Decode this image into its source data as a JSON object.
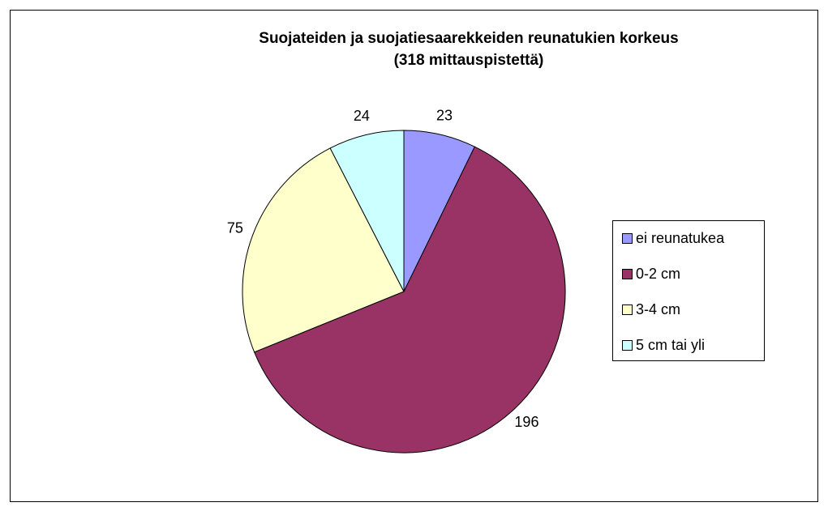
{
  "chart_data": {
    "type": "pie",
    "title": [
      "Suojateiden ja suojatiesaarekkeiden reunatukien korkeus",
      "(318 mittauspistettä)"
    ],
    "categories": [
      "ei reunatukea",
      "0-2 cm",
      "3-4 cm",
      "5 cm tai yli"
    ],
    "values": [
      23,
      196,
      75,
      24
    ],
    "colors": [
      "#9999ff",
      "#993366",
      "#ffffcc",
      "#ccffff"
    ],
    "legend": "right"
  }
}
